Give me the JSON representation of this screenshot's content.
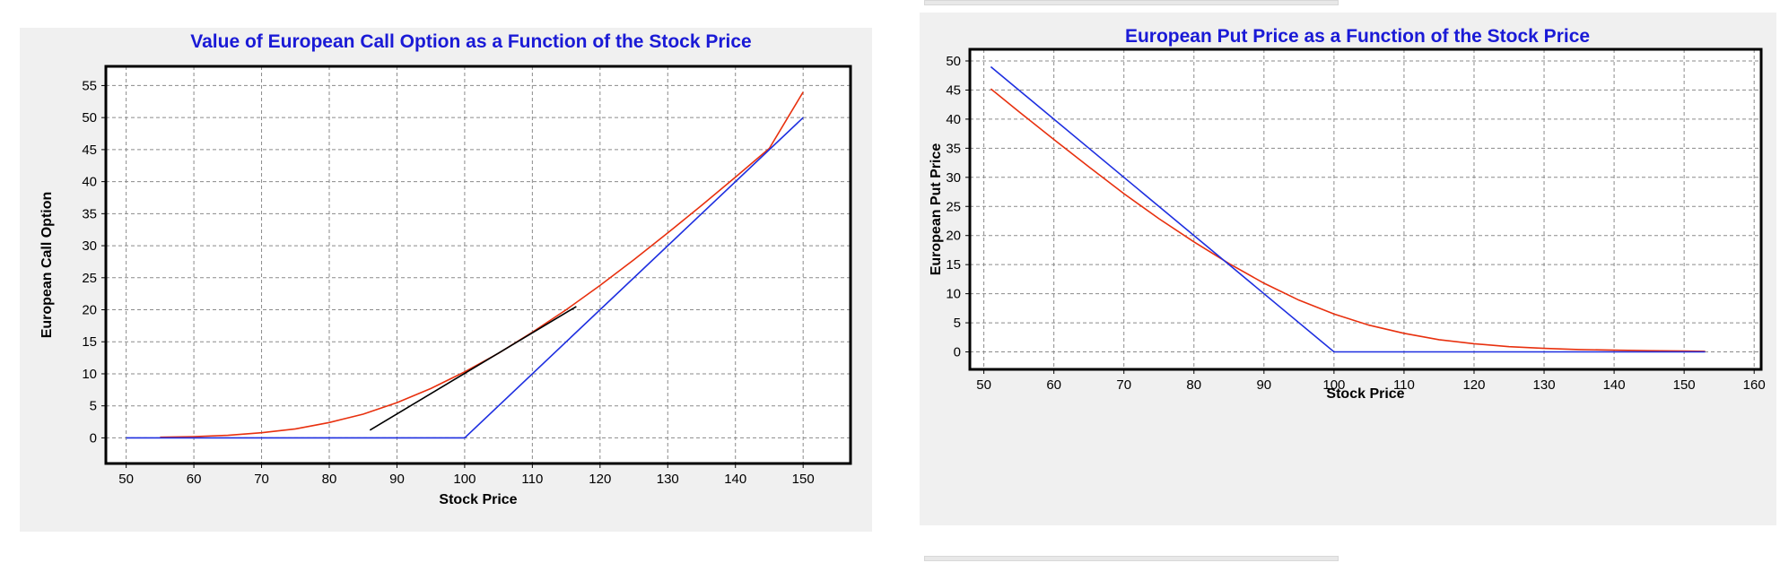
{
  "chart_data": [
    {
      "type": "line",
      "title": "Value of European Call Option as a Function of the Stock Price",
      "xlabel": "Stock Price",
      "ylabel": "European Call Option",
      "xlim": [
        47,
        157
      ],
      "ylim": [
        -4,
        58
      ],
      "xticks": [
        50,
        60,
        70,
        80,
        90,
        100,
        110,
        120,
        130,
        140,
        150
      ],
      "yticks": [
        0,
        5,
        10,
        15,
        20,
        25,
        30,
        35,
        40,
        45,
        50,
        55
      ],
      "grid": true,
      "series": [
        {
          "color": "#e8300e",
          "x": [
            55,
            60,
            65,
            70,
            75,
            80,
            85,
            90,
            95,
            100,
            105,
            110,
            115,
            120,
            125,
            130,
            135,
            140,
            145,
            150
          ],
          "y": [
            0.1,
            0.2,
            0.4,
            0.8,
            1.4,
            2.4,
            3.7,
            5.5,
            7.7,
            10.3,
            13.2,
            16.5,
            20.0,
            23.8,
            27.8,
            32.0,
            36.3,
            40.7,
            45.2,
            54
          ]
        },
        {
          "color": "#1e2fe0",
          "x": [
            50,
            100,
            150
          ],
          "y": [
            0,
            0,
            50
          ]
        },
        {
          "color": "#000000",
          "x": [
            86,
            116.5
          ],
          "y": [
            1.2,
            20.5
          ]
        }
      ]
    },
    {
      "type": "line",
      "title": "European Put Price as a Function of the Stock Price",
      "xlabel": "Stock Price",
      "ylabel": "European Put Price",
      "xlim": [
        48,
        161
      ],
      "ylim": [
        -3,
        52
      ],
      "xticks": [
        50,
        60,
        70,
        80,
        90,
        100,
        110,
        120,
        130,
        140,
        150,
        160
      ],
      "yticks": [
        0,
        5,
        10,
        15,
        20,
        25,
        30,
        35,
        40,
        45,
        50
      ],
      "grid": true,
      "series": [
        {
          "color": "#e8300e",
          "x": [
            51,
            55,
            60,
            65,
            70,
            75,
            80,
            85,
            90,
            95,
            100,
            105,
            110,
            115,
            120,
            125,
            130,
            135,
            140,
            145,
            150,
            153
          ],
          "y": [
            45.2,
            41.3,
            36.5,
            31.8,
            27.2,
            22.9,
            18.9,
            15.2,
            11.8,
            8.9,
            6.5,
            4.6,
            3.2,
            2.1,
            1.4,
            0.9,
            0.6,
            0.4,
            0.3,
            0.2,
            0.15,
            0.1
          ]
        },
        {
          "color": "#1e2fe0",
          "x": [
            51,
            100,
            153
          ],
          "y": [
            49,
            0,
            0
          ]
        }
      ]
    }
  ]
}
